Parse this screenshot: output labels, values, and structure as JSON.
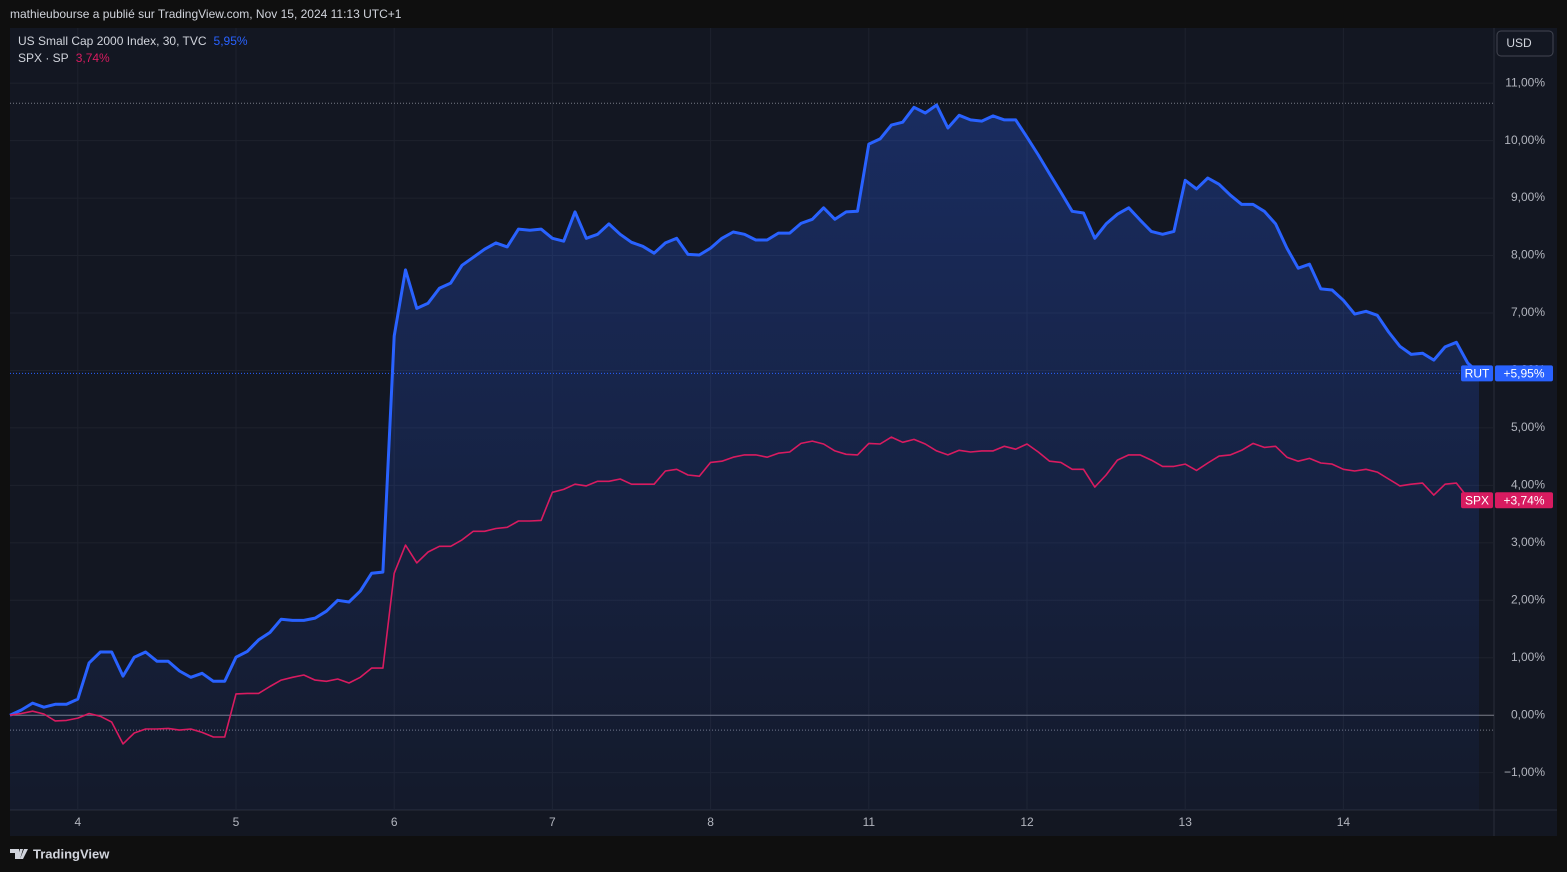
{
  "header": "mathieubourse a publié sur TradingView.com, Nov 15, 2024 11:13 UTC+1",
  "currency": "USD",
  "footer": "TradingView",
  "chart_data": {
    "type": "line",
    "categories": [
      null,
      null,
      null,
      null,
      null,
      null,
      "4",
      null,
      null,
      null,
      null,
      null,
      null,
      null,
      null,
      null,
      null,
      null,
      null,
      null,
      "5",
      null,
      null,
      null,
      null,
      null,
      null,
      null,
      null,
      null,
      null,
      null,
      null,
      null,
      "6",
      null,
      null,
      null,
      null,
      null,
      null,
      null,
      null,
      null,
      null,
      null,
      null,
      null,
      "7",
      null,
      null,
      null,
      null,
      null,
      null,
      null,
      null,
      null,
      null,
      null,
      null,
      null,
      "8",
      null,
      null,
      null,
      null,
      null,
      null,
      null,
      null,
      null,
      null,
      null,
      null,
      null,
      "11",
      null,
      null,
      null,
      null,
      null,
      null,
      null,
      null,
      null,
      null,
      null,
      null,
      null,
      "12",
      null,
      null,
      null,
      null,
      null,
      null,
      null,
      null,
      null,
      null,
      null,
      null,
      null,
      "13",
      null,
      null,
      null,
      null,
      null,
      null,
      null,
      null,
      null,
      null,
      null,
      null,
      null,
      "14",
      null,
      null,
      null,
      null,
      null,
      null,
      null,
      null,
      null,
      null,
      null,
      null
    ],
    "series": [
      {
        "name": "US Small Cap 2000 Index, 30, TVC",
        "symbol": "RUT",
        "legend_value": "5,95%",
        "price_label": "+5,95%",
        "color": "#2962ff",
        "area": true,
        "values": [
          0,
          0.09,
          0.21,
          0.14,
          0.19,
          0.19,
          0.28,
          0.91,
          1.1,
          1.1,
          0.68,
          1.01,
          1.1,
          0.94,
          0.94,
          0.77,
          0.66,
          0.73,
          0.59,
          0.59,
          1.01,
          1.11,
          1.31,
          1.44,
          1.67,
          1.65,
          1.65,
          1.69,
          1.81,
          2.0,
          1.97,
          2.16,
          2.47,
          2.49,
          6.6,
          7.75,
          7.08,
          7.17,
          7.43,
          7.52,
          7.83,
          7.97,
          8.11,
          8.22,
          8.15,
          8.46,
          8.44,
          8.46,
          8.3,
          8.25,
          8.76,
          8.3,
          8.37,
          8.55,
          8.37,
          8.23,
          8.16,
          8.04,
          8.22,
          8.3,
          8.02,
          8.01,
          8.13,
          8.3,
          8.41,
          8.37,
          8.27,
          8.27,
          8.39,
          8.39,
          8.56,
          8.63,
          8.83,
          8.63,
          8.76,
          8.77,
          9.94,
          10.03,
          10.27,
          10.32,
          10.58,
          10.48,
          10.62,
          10.22,
          10.44,
          10.36,
          10.34,
          10.43,
          10.36,
          10.36,
          10.06,
          9.75,
          9.42,
          9.1,
          8.77,
          8.74,
          8.3,
          8.55,
          8.72,
          8.83,
          8.62,
          8.42,
          8.37,
          8.42,
          9.31,
          9.16,
          9.35,
          9.24,
          9.05,
          8.89,
          8.89,
          8.77,
          8.55,
          8.13,
          7.78,
          7.85,
          7.42,
          7.4,
          7.22,
          6.98,
          7.03,
          6.96,
          6.67,
          6.42,
          6.28,
          6.3,
          6.18,
          6.41,
          6.49,
          6.13,
          5.95
        ]
      },
      {
        "name": "SPX · SP",
        "symbol": "SPX",
        "legend_value": "3,74%",
        "price_label": "+3,74%",
        "color": "#d81b60",
        "area": false,
        "values": [
          0,
          0.03,
          0.07,
          0.02,
          -0.1,
          -0.09,
          -0.05,
          0.03,
          -0.02,
          -0.12,
          -0.5,
          -0.31,
          -0.24,
          -0.24,
          -0.23,
          -0.26,
          -0.24,
          -0.3,
          -0.38,
          -0.38,
          0.37,
          0.38,
          0.38,
          0.5,
          0.61,
          0.66,
          0.7,
          0.61,
          0.59,
          0.63,
          0.56,
          0.66,
          0.82,
          0.82,
          2.47,
          2.96,
          2.65,
          2.84,
          2.94,
          2.94,
          3.05,
          3.2,
          3.2,
          3.25,
          3.27,
          3.38,
          3.38,
          3.39,
          3.88,
          3.93,
          4.02,
          3.99,
          4.07,
          4.07,
          4.11,
          4.02,
          4.02,
          4.02,
          4.25,
          4.28,
          4.18,
          4.16,
          4.4,
          4.42,
          4.49,
          4.53,
          4.53,
          4.49,
          4.56,
          4.58,
          4.73,
          4.77,
          4.72,
          4.6,
          4.54,
          4.53,
          4.73,
          4.72,
          4.84,
          4.75,
          4.8,
          4.72,
          4.6,
          4.53,
          4.61,
          4.58,
          4.6,
          4.6,
          4.68,
          4.63,
          4.72,
          4.58,
          4.42,
          4.4,
          4.28,
          4.28,
          3.97,
          4.18,
          4.44,
          4.53,
          4.53,
          4.44,
          4.33,
          4.33,
          4.37,
          4.26,
          4.39,
          4.51,
          4.53,
          4.61,
          4.73,
          4.66,
          4.68,
          4.49,
          4.42,
          4.47,
          4.39,
          4.37,
          4.28,
          4.25,
          4.28,
          4.23,
          4.11,
          3.99,
          4.02,
          4.04,
          3.83,
          4.02,
          4.04,
          3.79,
          3.74
        ]
      }
    ],
    "reference_lines": [
      10.65,
      -0.26
    ],
    "ylim": [
      -1.65,
      11.96
    ],
    "yticks": [
      {
        "value": -1,
        "label": "−1,00%"
      },
      {
        "value": 0,
        "label": "0,00%"
      },
      {
        "value": 1,
        "label": "1,00%"
      },
      {
        "value": 2,
        "label": "2,00%"
      },
      {
        "value": 3,
        "label": "3,00%"
      },
      {
        "value": 4,
        "label": "4,00%"
      },
      {
        "value": 5,
        "label": "5,00%"
      },
      {
        "value": 6,
        "label": "6,00%"
      },
      {
        "value": 7,
        "label": "7,00%"
      },
      {
        "value": 8,
        "label": "8,00%"
      },
      {
        "value": 9,
        "label": "9,00%"
      },
      {
        "value": 10,
        "label": "10,00%"
      },
      {
        "value": 11,
        "label": "11,00%"
      }
    ],
    "grid": true
  }
}
